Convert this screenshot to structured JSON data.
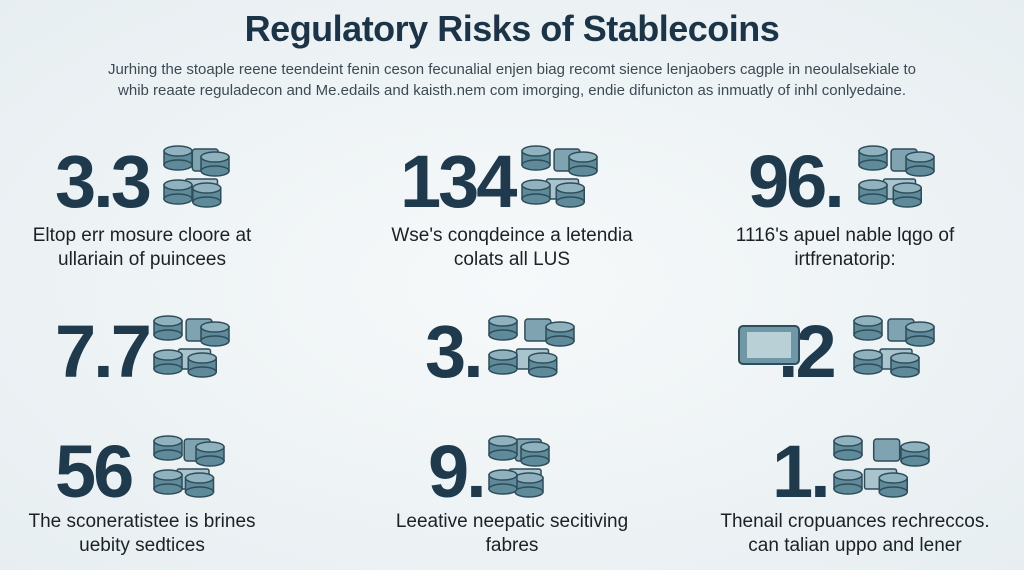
{
  "header": {
    "title": "Regulatory Risks of Stablecoins",
    "intro": [
      "Jurhing the stoaple reene teendeint fenin ceson fecunalial enjen biag recomt sience lenjaobers cagple in neoulalsekiale to",
      "whib reaate reguladecon and Me.edails and kaisth.nem com imorging, endie difunicton as inmuatly of inhl conlyedaine."
    ]
  },
  "stats": [
    {
      "number": "3.3",
      "caption": [
        "Eltop err mosure cloore at",
        "ullariain of puincees"
      ]
    },
    {
      "number": "134",
      "caption": [
        "Wse's conqdeince a letendia",
        "colats all LUS"
      ]
    },
    {
      "number": "96.",
      "caption": [
        "1116's apuel nable lqgo of",
        "irtfrenatorip:"
      ]
    },
    {
      "number": "7.7"
    },
    {
      "number": "3."
    },
    {
      "number": ".2"
    },
    {
      "number": "56",
      "caption": [
        "The sconeratistee is brines",
        "uebity sedtices"
      ]
    },
    {
      "number": "9.",
      "caption": [
        "Leeative neepatic secitiving",
        "fabres"
      ]
    },
    {
      "number": "1.",
      "caption": [
        "Thenail cropuances rechreccos.",
        "can talian uppo and lener"
      ]
    }
  ]
}
